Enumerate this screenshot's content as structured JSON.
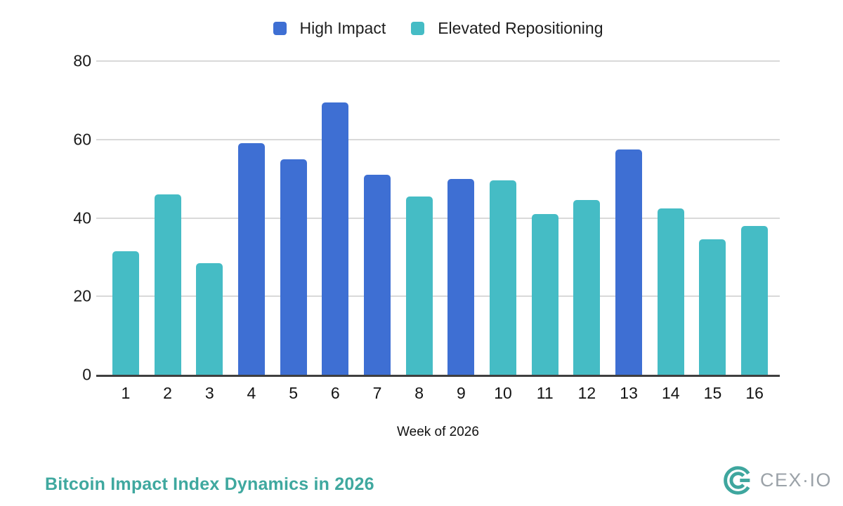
{
  "chart_data": {
    "type": "bar",
    "title": "Bitcoin Impact Index Dynamics in 2026",
    "xlabel": "Week of 2026",
    "ylabel": "",
    "ylim": [
      0,
      80
    ],
    "yticks": [
      0,
      20,
      40,
      60,
      80
    ],
    "grid": true,
    "legend_position": "top-center",
    "legend": [
      "High Impact",
      "Elevated Repositioning"
    ],
    "series_colors": {
      "High Impact": "#3E6FD3",
      "Elevated Repositioning": "#45BCC5"
    },
    "categories": [
      "1",
      "2",
      "3",
      "4",
      "5",
      "6",
      "7",
      "8",
      "9",
      "10",
      "11",
      "12",
      "13",
      "14",
      "15",
      "16"
    ],
    "bars": [
      {
        "week": "1",
        "value": 31.5,
        "series": "Elevated Repositioning"
      },
      {
        "week": "2",
        "value": 46,
        "series": "Elevated Repositioning"
      },
      {
        "week": "3",
        "value": 28.5,
        "series": "Elevated Repositioning"
      },
      {
        "week": "4",
        "value": 59,
        "series": "High Impact"
      },
      {
        "week": "5",
        "value": 55,
        "series": "High Impact"
      },
      {
        "week": "6",
        "value": 69.5,
        "series": "High Impact"
      },
      {
        "week": "7",
        "value": 51,
        "series": "High Impact"
      },
      {
        "week": "8",
        "value": 45.5,
        "series": "Elevated Repositioning"
      },
      {
        "week": "9",
        "value": 50,
        "series": "High Impact"
      },
      {
        "week": "10",
        "value": 49.5,
        "series": "Elevated Repositioning"
      },
      {
        "week": "11",
        "value": 41,
        "series": "Elevated Repositioning"
      },
      {
        "week": "12",
        "value": 44.5,
        "series": "Elevated Repositioning"
      },
      {
        "week": "13",
        "value": 57.5,
        "series": "High Impact"
      },
      {
        "week": "14",
        "value": 42.5,
        "series": "Elevated Repositioning"
      },
      {
        "week": "15",
        "value": 34.5,
        "series": "Elevated Repositioning"
      },
      {
        "week": "16",
        "value": 38,
        "series": "Elevated Repositioning"
      }
    ]
  },
  "footer": {
    "title": "Bitcoin Impact Index Dynamics in 2026",
    "brand_text": "CEX·IO"
  },
  "colors": {
    "high_impact_blue": "#3E6FD3",
    "elevated_teal": "#45BCC5",
    "title_teal": "#3FA89F",
    "brand_grey": "#9BA2A8",
    "logo_teal": "#3EA69E",
    "gridline": "#D9D9D9",
    "axis_line": "#3F3F3F"
  }
}
